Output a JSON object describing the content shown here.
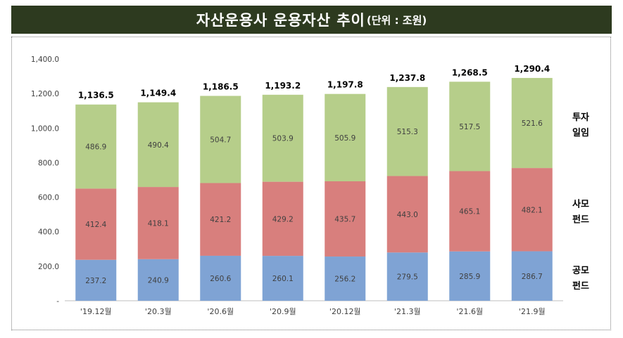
{
  "header": {
    "title": "자산운용사 운용자산 추이",
    "unit": "(단위 : 조원)"
  },
  "colors": {
    "header_bg": "#2d3a1f",
    "공모펀드": "#7fa3d4",
    "사모펀드": "#d87f7d",
    "투자일임": "#b6ce8a"
  },
  "chart_data": {
    "type": "bar",
    "stacked": true,
    "title": "자산운용사 운용자산 추이(단위 : 조원)",
    "categories": [
      "'19.12월",
      "'20.3월",
      "'20.6월",
      "'20.9월",
      "'20.12월",
      "'21.3월",
      "'21.6월",
      "'21.9월"
    ],
    "series": [
      {
        "name": "공모펀드",
        "label_lines": [
          "공모",
          "펀드"
        ],
        "values": [
          237.2,
          240.9,
          260.6,
          260.1,
          256.2,
          279.5,
          285.9,
          286.7
        ]
      },
      {
        "name": "사모펀드",
        "label_lines": [
          "사모",
          "펀드"
        ],
        "values": [
          412.4,
          418.1,
          421.2,
          429.2,
          435.7,
          443.0,
          465.1,
          482.1
        ]
      },
      {
        "name": "투자일임",
        "label_lines": [
          "투자",
          "일임"
        ],
        "values": [
          486.9,
          490.4,
          504.7,
          503.9,
          505.9,
          515.3,
          517.5,
          521.6
        ]
      }
    ],
    "totals": [
      1136.5,
      1149.4,
      1186.5,
      1193.2,
      1197.8,
      1237.8,
      1268.5,
      1290.4
    ],
    "ylim": [
      0,
      1400
    ],
    "yticks": [
      "-",
      "200.0",
      "400.0",
      "600.0",
      "800.0",
      "1,000.0",
      "1,200.0",
      "1,400.0"
    ],
    "grid": false,
    "legend": "right"
  }
}
